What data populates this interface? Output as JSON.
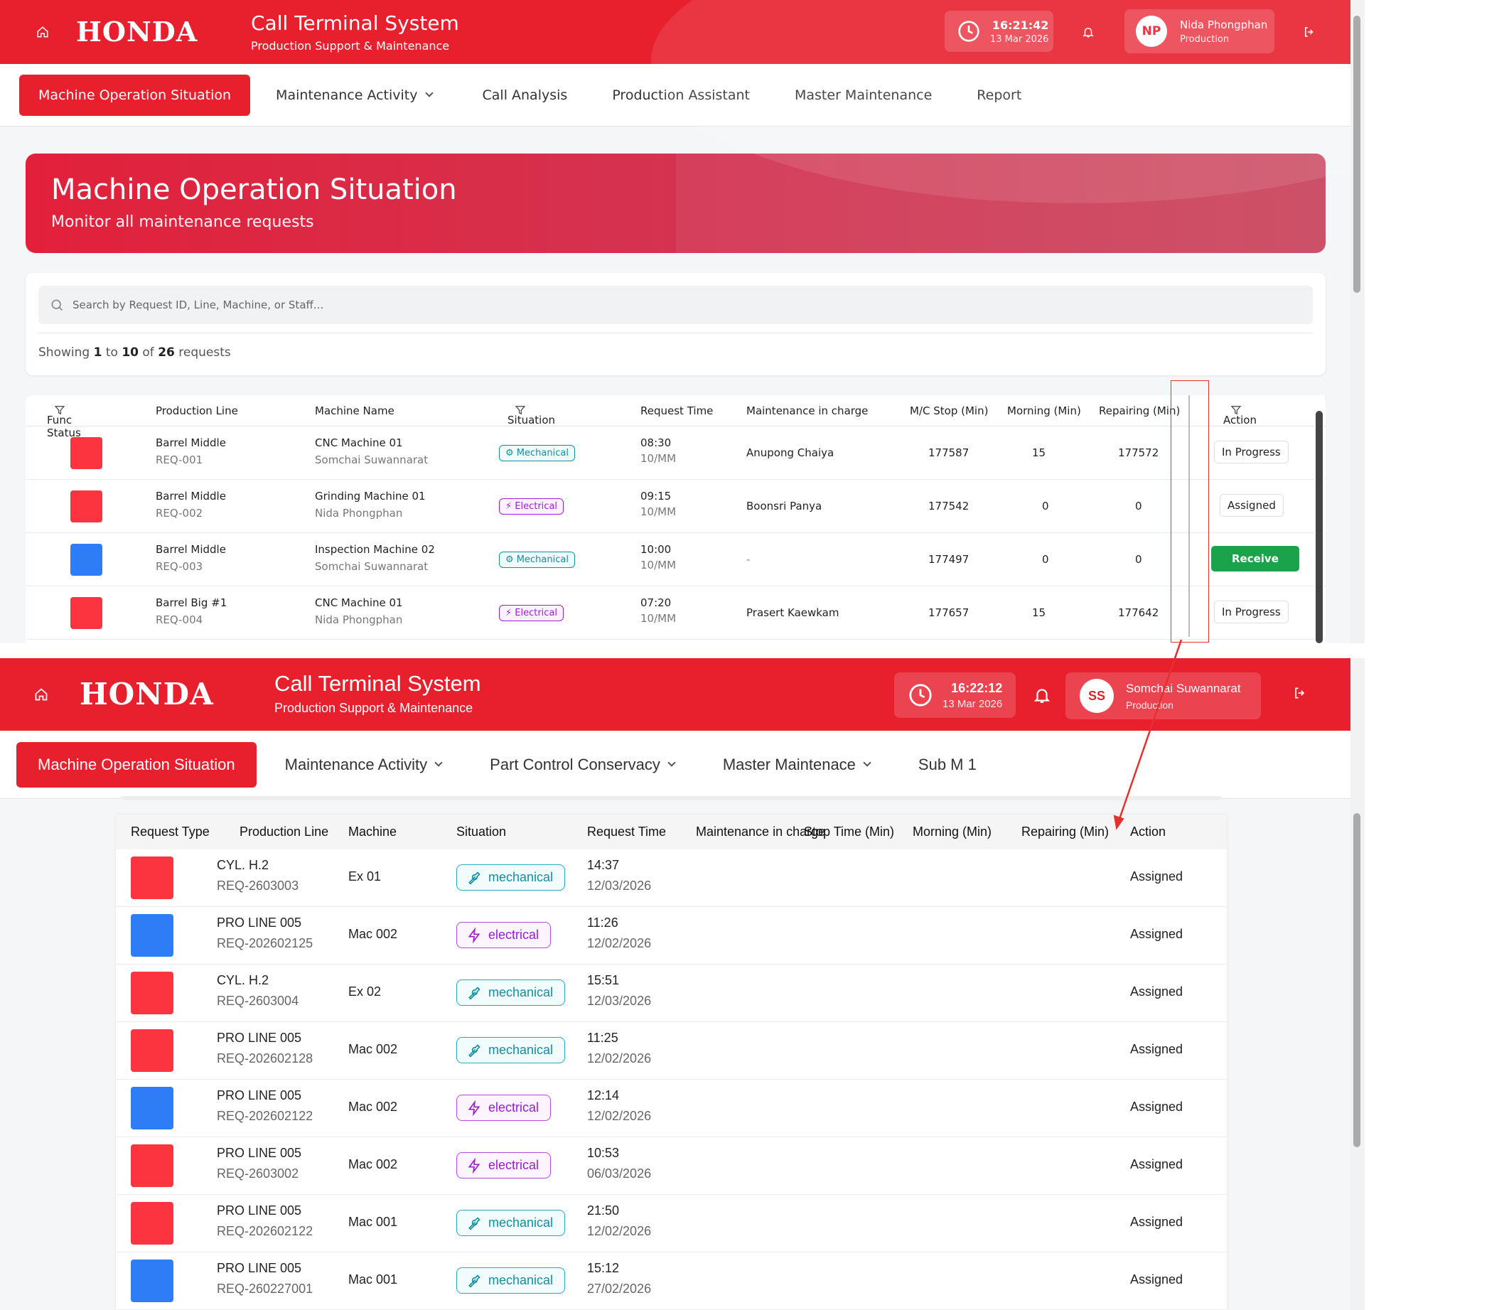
{
  "colors": {
    "brand": "#e8202e",
    "status_red": "#fb3440",
    "status_blue": "#2d7df6",
    "mechanical": "#0f8fa0",
    "electrical": "#a21bd8",
    "receive": "#1aa34a"
  },
  "top": {
    "brand": "HONDA",
    "app_title": "Call Terminal System",
    "app_subtitle": "Production Support & Maintenance",
    "clock_time": "16:21:42",
    "clock_date": "13 Mar 2026",
    "user_initials": "NP",
    "user_name": "Nida Phongphan",
    "user_role": "Production",
    "nav": [
      "Machine Operation Situation",
      "Maintenance Activity",
      "Call Analysis",
      "Production Assistant",
      "Master Maintenance",
      "Report"
    ],
    "banner_title": "Machine Operation Situation",
    "banner_subtitle": "Monitor all maintenance requests",
    "search_placeholder": "Search by Request ID, Line, Machine, or Staff...",
    "showing_prefix": "Showing",
    "showing_from": "1",
    "showing_to_word": "to",
    "showing_to": "10",
    "showing_of_word": "of",
    "showing_total": "26",
    "showing_suffix": "requests",
    "columns": [
      "Func Status",
      "Production Line",
      "Machine Name",
      "Situation",
      "Request Time",
      "Maintenance in charge",
      "M/C Stop (Min)",
      "Morning (Min)",
      "Repairing (Min)",
      "Action"
    ],
    "rows": [
      {
        "status": "red",
        "line": "Barrel Middle",
        "req": "REQ-001",
        "machine": "CNC Machine 01",
        "staff": "Somchai Suwannarat",
        "situation": "Mechanical",
        "time": "08:30",
        "date": "10/MM",
        "maint": "Anupong Chaiya",
        "stop": "177587",
        "morning": "15",
        "repair": "177572",
        "action": "In Progress"
      },
      {
        "status": "red",
        "line": "Barrel Middle",
        "req": "REQ-002",
        "machine": "Grinding Machine 01",
        "staff": "Nida Phongphan",
        "situation": "Electrical",
        "time": "09:15",
        "date": "10/MM",
        "maint": "Boonsri Panya",
        "stop": "177542",
        "morning": "0",
        "repair": "0",
        "action": "Assigned"
      },
      {
        "status": "blue",
        "line": "Barrel Middle",
        "req": "REQ-003",
        "machine": "Inspection Machine 02",
        "staff": "Somchai Suwannarat",
        "situation": "Mechanical",
        "time": "10:00",
        "date": "10/MM",
        "maint": "-",
        "stop": "177497",
        "morning": "0",
        "repair": "0",
        "action": "Receive"
      },
      {
        "status": "red",
        "line": "Barrel Big #1",
        "req": "REQ-004",
        "machine": "CNC Machine 01",
        "staff": "Nida Phongphan",
        "situation": "Electrical",
        "time": "07:20",
        "date": "10/MM",
        "maint": "Prasert Kaewkam",
        "stop": "177657",
        "morning": "15",
        "repair": "177642",
        "action": "In Progress"
      }
    ]
  },
  "bottom": {
    "brand": "HONDA",
    "app_title": "Call Terminal System",
    "app_subtitle": "Production Support & Maintenance",
    "clock_time": "16:22:12",
    "clock_date": "13 Mar 2026",
    "user_initials": "SS",
    "user_name": "Somchai Suwannarat",
    "user_role": "Production",
    "nav": [
      "Machine Operation Situation",
      "Maintenance Activity",
      "Part Control Conservacy",
      "Master Maintenace",
      "Sub M 1"
    ],
    "columns": [
      "Request Type",
      "Production Line",
      "Machine",
      "Situation",
      "Request Time",
      "Maintenance in charge",
      "Stop Time (Min)",
      "Morning (Min)",
      "Repairing (Min)",
      "Action"
    ],
    "rows": [
      {
        "status": "red",
        "line": "CYL. H.2",
        "req": "REQ-2603003",
        "machine": "Ex 01",
        "situation": "mechanical",
        "time": "14:37",
        "date": "12/03/2026",
        "action": "Assigned"
      },
      {
        "status": "blue",
        "line": "PRO LINE 005",
        "req": "REQ-202602125",
        "machine": "Mac 002",
        "situation": "electrical",
        "time": "11:26",
        "date": "12/02/2026",
        "action": "Assigned"
      },
      {
        "status": "red",
        "line": "CYL. H.2",
        "req": "REQ-2603004",
        "machine": "Ex 02",
        "situation": "mechanical",
        "time": "15:51",
        "date": "12/03/2026",
        "action": "Assigned"
      },
      {
        "status": "red",
        "line": "PRO LINE 005",
        "req": "REQ-202602128",
        "machine": "Mac 002",
        "situation": "mechanical",
        "time": "11:25",
        "date": "12/02/2026",
        "action": "Assigned"
      },
      {
        "status": "blue",
        "line": "PRO LINE 005",
        "req": "REQ-202602122",
        "machine": "Mac 002",
        "situation": "electrical",
        "time": "12:14",
        "date": "12/02/2026",
        "action": "Assigned"
      },
      {
        "status": "red",
        "line": "PRO LINE 005",
        "req": "REQ-2603002",
        "machine": "Mac 002",
        "situation": "electrical",
        "time": "10:53",
        "date": "06/03/2026",
        "action": "Assigned"
      },
      {
        "status": "red",
        "line": "PRO LINE 005",
        "req": "REQ-202602122",
        "machine": "Mac 001",
        "situation": "mechanical",
        "time": "21:50",
        "date": "12/02/2026",
        "action": "Assigned"
      },
      {
        "status": "blue",
        "line": "PRO LINE 005",
        "req": "REQ-260227001",
        "machine": "Mac 001",
        "situation": "mechanical",
        "time": "15:12",
        "date": "27/02/2026",
        "action": "Assigned"
      }
    ]
  }
}
